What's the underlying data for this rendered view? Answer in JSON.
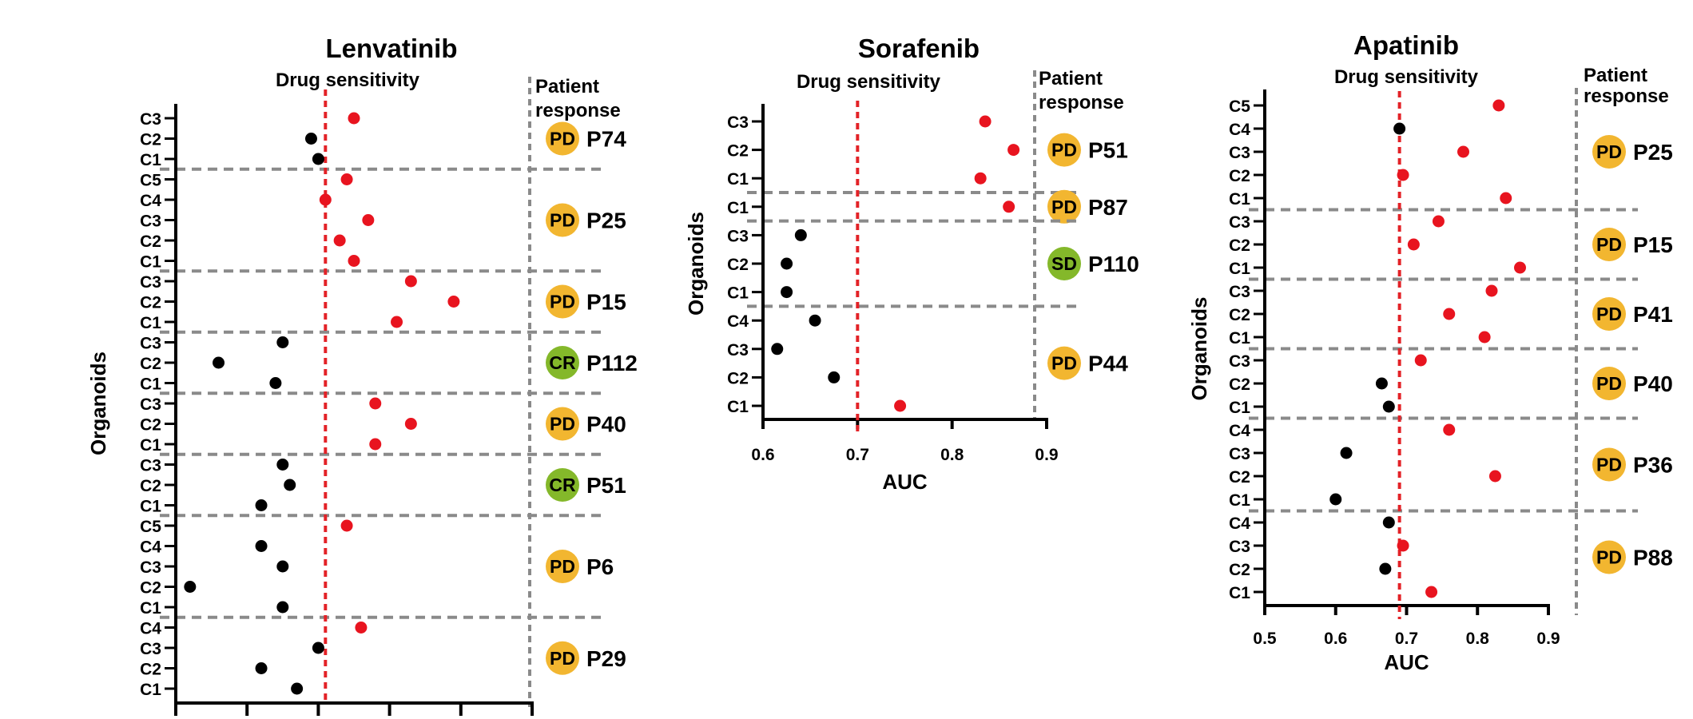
{
  "colors": {
    "sensitive": "#e8141f",
    "resistant": "#000000",
    "threshold": "#e32227",
    "separator": "#8a8a8a",
    "pd_badge": "#f2b630",
    "cr_badge": "#84b82a",
    "sd_badge": "#84b82a"
  },
  "chart_data": [
    {
      "type": "scatter",
      "title": "Lenvatinib",
      "subtitle": "Drug sensitivity",
      "response_header": [
        "Patient",
        "response"
      ],
      "ylabel": "Organoids",
      "xlabel": "",
      "xlim": [
        0.5,
        1.0
      ],
      "xticks": [
        0.5,
        0.6,
        0.7,
        0.8,
        0.9,
        1.0
      ],
      "xtick_labels": [],
      "threshold": 0.71,
      "groups": [
        {
          "patient": "P74",
          "response": "PD",
          "points": [
            {
              "organoid": "C3",
              "auc": 0.75,
              "sensitive": true
            },
            {
              "organoid": "C2",
              "auc": 0.69,
              "sensitive": false
            },
            {
              "organoid": "C1",
              "auc": 0.7,
              "sensitive": false
            }
          ]
        },
        {
          "patient": "P25",
          "response": "PD",
          "points": [
            {
              "organoid": "C5",
              "auc": 0.74,
              "sensitive": true
            },
            {
              "organoid": "C4",
              "auc": 0.71,
              "sensitive": true
            },
            {
              "organoid": "C3",
              "auc": 0.77,
              "sensitive": true
            },
            {
              "organoid": "C2",
              "auc": 0.73,
              "sensitive": true
            },
            {
              "organoid": "C1",
              "auc": 0.75,
              "sensitive": true
            }
          ]
        },
        {
          "patient": "P15",
          "response": "PD",
          "points": [
            {
              "organoid": "C3",
              "auc": 0.83,
              "sensitive": true
            },
            {
              "organoid": "C2",
              "auc": 0.89,
              "sensitive": true
            },
            {
              "organoid": "C1",
              "auc": 0.81,
              "sensitive": true
            }
          ]
        },
        {
          "patient": "P112",
          "response": "CR",
          "points": [
            {
              "organoid": "C3",
              "auc": 0.65,
              "sensitive": false
            },
            {
              "organoid": "C2",
              "auc": 0.56,
              "sensitive": false
            },
            {
              "organoid": "C1",
              "auc": 0.64,
              "sensitive": false
            }
          ]
        },
        {
          "patient": "P40",
          "response": "PD",
          "points": [
            {
              "organoid": "C3",
              "auc": 0.78,
              "sensitive": true
            },
            {
              "organoid": "C2",
              "auc": 0.83,
              "sensitive": true
            },
            {
              "organoid": "C1",
              "auc": 0.78,
              "sensitive": true
            }
          ]
        },
        {
          "patient": "P51",
          "response": "CR",
          "points": [
            {
              "organoid": "C3",
              "auc": 0.65,
              "sensitive": false
            },
            {
              "organoid": "C2",
              "auc": 0.66,
              "sensitive": false
            },
            {
              "organoid": "C1",
              "auc": 0.62,
              "sensitive": false
            }
          ]
        },
        {
          "patient": "P6",
          "response": "PD",
          "points": [
            {
              "organoid": "C5",
              "auc": 0.74,
              "sensitive": true
            },
            {
              "organoid": "C4",
              "auc": 0.62,
              "sensitive": false
            },
            {
              "organoid": "C3",
              "auc": 0.65,
              "sensitive": false
            },
            {
              "organoid": "C2",
              "auc": 0.52,
              "sensitive": false
            },
            {
              "organoid": "C1",
              "auc": 0.65,
              "sensitive": false
            }
          ]
        },
        {
          "patient": "P29",
          "response": "PD",
          "points": [
            {
              "organoid": "C4",
              "auc": 0.76,
              "sensitive": true
            },
            {
              "organoid": "C3",
              "auc": 0.7,
              "sensitive": false
            },
            {
              "organoid": "C2",
              "auc": 0.62,
              "sensitive": false
            },
            {
              "organoid": "C1",
              "auc": 0.67,
              "sensitive": false
            }
          ]
        }
      ]
    },
    {
      "type": "scatter",
      "title": "Sorafenib",
      "subtitle": "Drug sensitivity",
      "response_header": [
        "Patient",
        "response"
      ],
      "ylabel": "Organoids",
      "xlabel": "AUC",
      "xlim": [
        0.6,
        0.9
      ],
      "xticks": [
        0.6,
        0.7,
        0.8,
        0.9
      ],
      "xtick_labels": [
        "0.6",
        "0.7",
        "0.8",
        "0.9"
      ],
      "threshold": 0.7,
      "groups": [
        {
          "patient": "P51",
          "response": "PD",
          "points": [
            {
              "organoid": "C3",
              "auc": 0.835,
              "sensitive": true
            },
            {
              "organoid": "C2",
              "auc": 0.865,
              "sensitive": true
            },
            {
              "organoid": "C1",
              "auc": 0.83,
              "sensitive": true
            }
          ]
        },
        {
          "patient": "P87",
          "response": "PD",
          "points": [
            {
              "organoid": "C1",
              "auc": 0.86,
              "sensitive": true
            }
          ]
        },
        {
          "patient": "P110",
          "response": "SD",
          "points": [
            {
              "organoid": "C3",
              "auc": 0.64,
              "sensitive": false
            },
            {
              "organoid": "C2",
              "auc": 0.625,
              "sensitive": false
            },
            {
              "organoid": "C1",
              "auc": 0.625,
              "sensitive": false
            }
          ]
        },
        {
          "patient": "P44",
          "response": "PD",
          "points": [
            {
              "organoid": "C4",
              "auc": 0.655,
              "sensitive": false
            },
            {
              "organoid": "C3",
              "auc": 0.615,
              "sensitive": false
            },
            {
              "organoid": "C2",
              "auc": 0.675,
              "sensitive": false
            },
            {
              "organoid": "C1",
              "auc": 0.745,
              "sensitive": true
            }
          ]
        }
      ]
    },
    {
      "type": "scatter",
      "title": "Apatinib",
      "subtitle": "Drug sensitivity",
      "response_header": [
        "Patient",
        "response"
      ],
      "ylabel": "Organoids",
      "xlabel": "AUC",
      "xlim": [
        0.5,
        0.9
      ],
      "xticks": [
        0.5,
        0.6,
        0.7,
        0.8,
        0.9
      ],
      "xtick_labels": [
        "0.5",
        "0.6",
        "0.7",
        "0.8",
        "0.9"
      ],
      "threshold": 0.69,
      "groups": [
        {
          "patient": "P25",
          "response": "PD",
          "points": [
            {
              "organoid": "C5",
              "auc": 0.83,
              "sensitive": true
            },
            {
              "organoid": "C4",
              "auc": 0.69,
              "sensitive": false
            },
            {
              "organoid": "C3",
              "auc": 0.78,
              "sensitive": true
            },
            {
              "organoid": "C2",
              "auc": 0.695,
              "sensitive": true
            },
            {
              "organoid": "C1",
              "auc": 0.84,
              "sensitive": true
            }
          ]
        },
        {
          "patient": "P15",
          "response": "PD",
          "points": [
            {
              "organoid": "C3",
              "auc": 0.745,
              "sensitive": true
            },
            {
              "organoid": "C2",
              "auc": 0.71,
              "sensitive": true
            },
            {
              "organoid": "C1",
              "auc": 0.86,
              "sensitive": true
            }
          ]
        },
        {
          "patient": "P41",
          "response": "PD",
          "points": [
            {
              "organoid": "C3",
              "auc": 0.82,
              "sensitive": true
            },
            {
              "organoid": "C2",
              "auc": 0.76,
              "sensitive": true
            },
            {
              "organoid": "C1",
              "auc": 0.81,
              "sensitive": true
            }
          ]
        },
        {
          "patient": "P40",
          "response": "PD",
          "points": [
            {
              "organoid": "C3",
              "auc": 0.72,
              "sensitive": true
            },
            {
              "organoid": "C2",
              "auc": 0.665,
              "sensitive": false
            },
            {
              "organoid": "C1",
              "auc": 0.675,
              "sensitive": false
            }
          ]
        },
        {
          "patient": "P36",
          "response": "PD",
          "points": [
            {
              "organoid": "C4",
              "auc": 0.76,
              "sensitive": true
            },
            {
              "organoid": "C3",
              "auc": 0.615,
              "sensitive": false
            },
            {
              "organoid": "C2",
              "auc": 0.825,
              "sensitive": true
            },
            {
              "organoid": "C1",
              "auc": 0.6,
              "sensitive": false
            }
          ]
        },
        {
          "patient": "P88",
          "response": "PD",
          "points": [
            {
              "organoid": "C4",
              "auc": 0.675,
              "sensitive": false
            },
            {
              "organoid": "C3",
              "auc": 0.695,
              "sensitive": true
            },
            {
              "organoid": "C2",
              "auc": 0.67,
              "sensitive": false
            },
            {
              "organoid": "C1",
              "auc": 0.735,
              "sensitive": true
            }
          ]
        }
      ]
    }
  ]
}
